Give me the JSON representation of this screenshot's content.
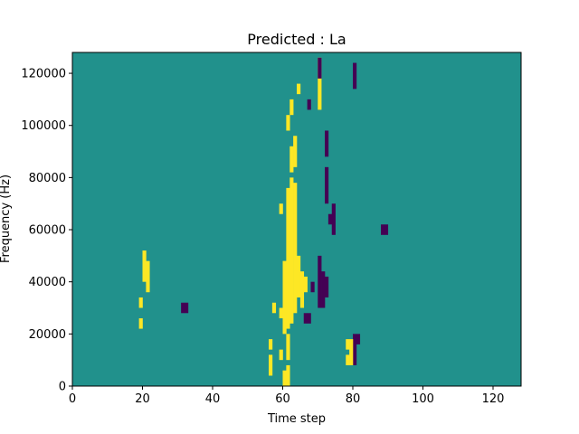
{
  "chart_data": {
    "type": "heatmap",
    "title": "Predicted : La",
    "xlabel": "Time step",
    "ylabel": "Frequency (Hz)",
    "xlim": [
      0,
      128
    ],
    "ylim": [
      0,
      128000
    ],
    "x_ticks": [
      0,
      20,
      40,
      60,
      80,
      100,
      120
    ],
    "y_ticks": [
      0,
      20000,
      40000,
      60000,
      80000,
      100000,
      120000
    ],
    "grid": false,
    "colors": {
      "background": "#21918c",
      "high": "#fde725",
      "low": "#440154"
    },
    "cells": [
      {
        "x": 60,
        "y0": 0,
        "y1": 6000,
        "v": "high"
      },
      {
        "x": 61,
        "y0": 0,
        "y1": 8000,
        "v": "high"
      },
      {
        "x": 61,
        "y0": 10000,
        "y1": 20000,
        "v": "high"
      },
      {
        "x": 60,
        "y0": 20000,
        "y1": 48000,
        "v": "high"
      },
      {
        "x": 61,
        "y0": 22000,
        "y1": 76000,
        "v": "high"
      },
      {
        "x": 62,
        "y0": 24000,
        "y1": 80000,
        "v": "high"
      },
      {
        "x": 63,
        "y0": 28000,
        "y1": 78000,
        "v": "high"
      },
      {
        "x": 64,
        "y0": 34000,
        "y1": 50000,
        "v": "high"
      },
      {
        "x": 62,
        "y0": 82000,
        "y1": 92000,
        "v": "high"
      },
      {
        "x": 63,
        "y0": 84000,
        "y1": 96000,
        "v": "high"
      },
      {
        "x": 61,
        "y0": 98000,
        "y1": 104000,
        "v": "high"
      },
      {
        "x": 62,
        "y0": 104000,
        "y1": 110000,
        "v": "high"
      },
      {
        "x": 59,
        "y0": 66000,
        "y1": 70000,
        "v": "high"
      },
      {
        "x": 65,
        "y0": 30000,
        "y1": 44000,
        "v": "high"
      },
      {
        "x": 66,
        "y0": 36000,
        "y1": 42000,
        "v": "high"
      },
      {
        "x": 59,
        "y0": 26000,
        "y1": 30000,
        "v": "high"
      },
      {
        "x": 59,
        "y0": 10000,
        "y1": 14000,
        "v": "high"
      },
      {
        "x": 70,
        "y0": 106000,
        "y1": 126000,
        "v": "high"
      },
      {
        "x": 64,
        "y0": 112000,
        "y1": 116000,
        "v": "high"
      },
      {
        "x": 70,
        "y0": 30000,
        "y1": 50000,
        "v": "low"
      },
      {
        "x": 71,
        "y0": 30000,
        "y1": 44000,
        "v": "low"
      },
      {
        "x": 72,
        "y0": 34000,
        "y1": 42000,
        "v": "low"
      },
      {
        "x": 72,
        "y0": 70000,
        "y1": 84000,
        "v": "low"
      },
      {
        "x": 72,
        "y0": 88000,
        "y1": 98000,
        "v": "low"
      },
      {
        "x": 74,
        "y0": 58000,
        "y1": 70000,
        "v": "low"
      },
      {
        "x": 73,
        "y0": 62000,
        "y1": 66000,
        "v": "low"
      },
      {
        "x": 66,
        "y0": 24000,
        "y1": 28000,
        "v": "low"
      },
      {
        "x": 67,
        "y0": 24000,
        "y1": 28000,
        "v": "low"
      },
      {
        "x": 70,
        "y0": 118000,
        "y1": 126000,
        "v": "low"
      },
      {
        "x": 80,
        "y0": 8000,
        "y1": 20000,
        "v": "low"
      },
      {
        "x": 81,
        "y0": 16000,
        "y1": 20000,
        "v": "low"
      },
      {
        "x": 88,
        "y0": 58000,
        "y1": 62000,
        "v": "low"
      },
      {
        "x": 89,
        "y0": 58000,
        "y1": 62000,
        "v": "low"
      },
      {
        "x": 31,
        "y0": 28000,
        "y1": 32000,
        "v": "low"
      },
      {
        "x": 32,
        "y0": 28000,
        "y1": 32000,
        "v": "low"
      },
      {
        "x": 68,
        "y0": 36000,
        "y1": 40000,
        "v": "low"
      },
      {
        "x": 67,
        "y0": 106000,
        "y1": 110000,
        "v": "low"
      },
      {
        "x": 80,
        "y0": 114000,
        "y1": 124000,
        "v": "low"
      },
      {
        "x": 78,
        "y0": 8000,
        "y1": 12000,
        "v": "high"
      },
      {
        "x": 79,
        "y0": 8000,
        "y1": 18000,
        "v": "high"
      },
      {
        "x": 78,
        "y0": 14000,
        "y1": 18000,
        "v": "high"
      },
      {
        "x": 20,
        "y0": 40000,
        "y1": 52000,
        "v": "high"
      },
      {
        "x": 21,
        "y0": 36000,
        "y1": 48000,
        "v": "high"
      },
      {
        "x": 19,
        "y0": 30000,
        "y1": 34000,
        "v": "high"
      },
      {
        "x": 19,
        "y0": 22000,
        "y1": 26000,
        "v": "high"
      },
      {
        "x": 57,
        "y0": 28000,
        "y1": 32000,
        "v": "high"
      },
      {
        "x": 56,
        "y0": 4000,
        "y1": 12000,
        "v": "high"
      },
      {
        "x": 56,
        "y0": 14000,
        "y1": 18000,
        "v": "high"
      }
    ]
  }
}
